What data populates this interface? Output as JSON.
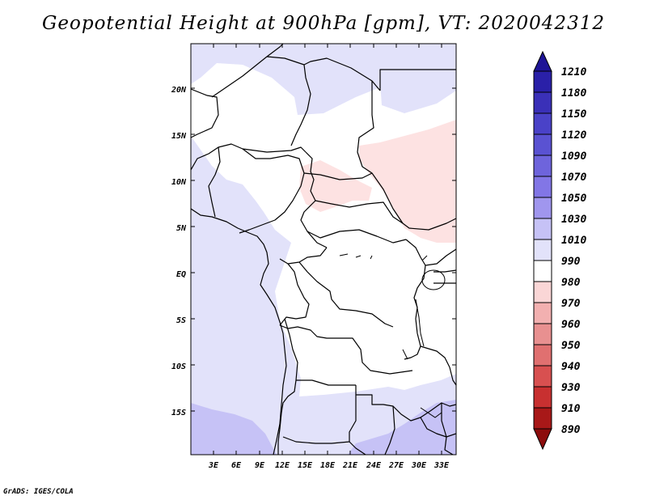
{
  "title": "Geopotential Height at 900hPa [gpm], VT: 2020042312",
  "credit": "GrADS: IGES/COLA",
  "map": {
    "lat_labels": [
      "20N",
      "15N",
      "10N",
      "5N",
      "EQ",
      "5S",
      "10S",
      "15S"
    ],
    "lon_labels": [
      "3E",
      "6E",
      "9E",
      "12E",
      "15E",
      "18E",
      "21E",
      "24E",
      "27E",
      "30E",
      "33E"
    ]
  },
  "colorbar": {
    "levels": [
      "1210",
      "1180",
      "1150",
      "1120",
      "1090",
      "1070",
      "1050",
      "1030",
      "1010",
      "990",
      "980",
      "970",
      "960",
      "950",
      "940",
      "930",
      "910",
      "890"
    ],
    "colors": [
      "#1e1496",
      "#2a20a8",
      "#3a30b8",
      "#4a42c8",
      "#5a52d2",
      "#6e64dc",
      "#8276e6",
      "#a096ee",
      "#c6c2f6",
      "#e2e2fa",
      "#ffffff",
      "#fad6d6",
      "#f2b0b0",
      "#e89090",
      "#e07070",
      "#d85050",
      "#c83030",
      "#a81818",
      "#8c0c0c"
    ]
  }
}
